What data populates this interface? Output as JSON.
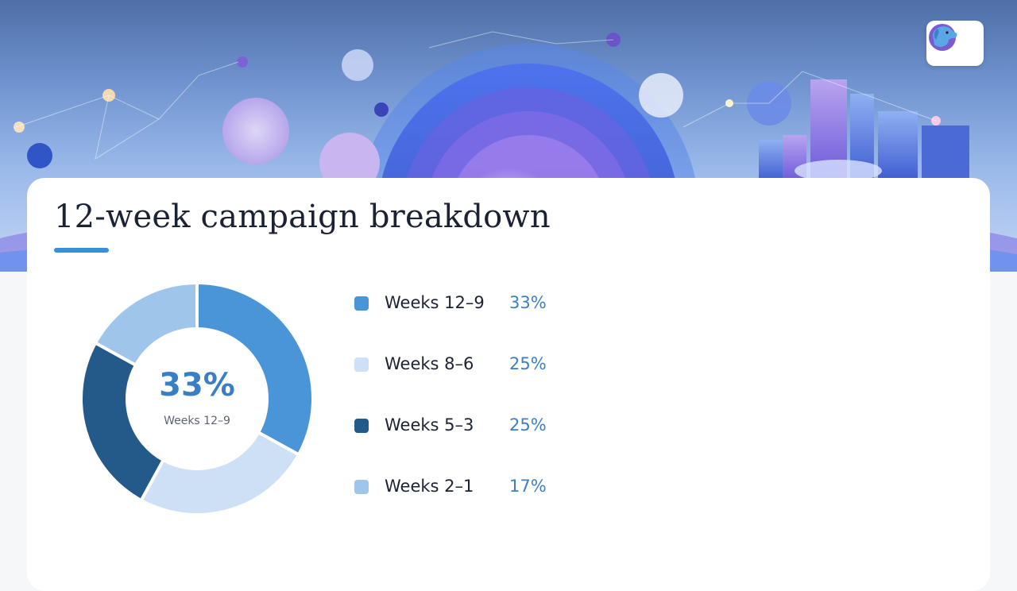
{
  "header": {
    "logo_icon": "dog-mascot-icon"
  },
  "title": "12-week campaign breakdown",
  "chart_data": {
    "type": "pie",
    "variant": "donut",
    "categories": [
      "Weeks 12–9",
      "Weeks 8–6",
      "Weeks 5–3",
      "Weeks 2–1"
    ],
    "values": [
      33,
      25,
      25,
      17
    ],
    "value_labels": [
      "33%",
      "25%",
      "25%",
      "17%"
    ],
    "colors": [
      "#4a95d8",
      "#cde0f5",
      "#235a8a",
      "#9fc5ea"
    ],
    "center_value": "33%",
    "center_label": "Weeks 12–9",
    "legend_position": "right"
  }
}
